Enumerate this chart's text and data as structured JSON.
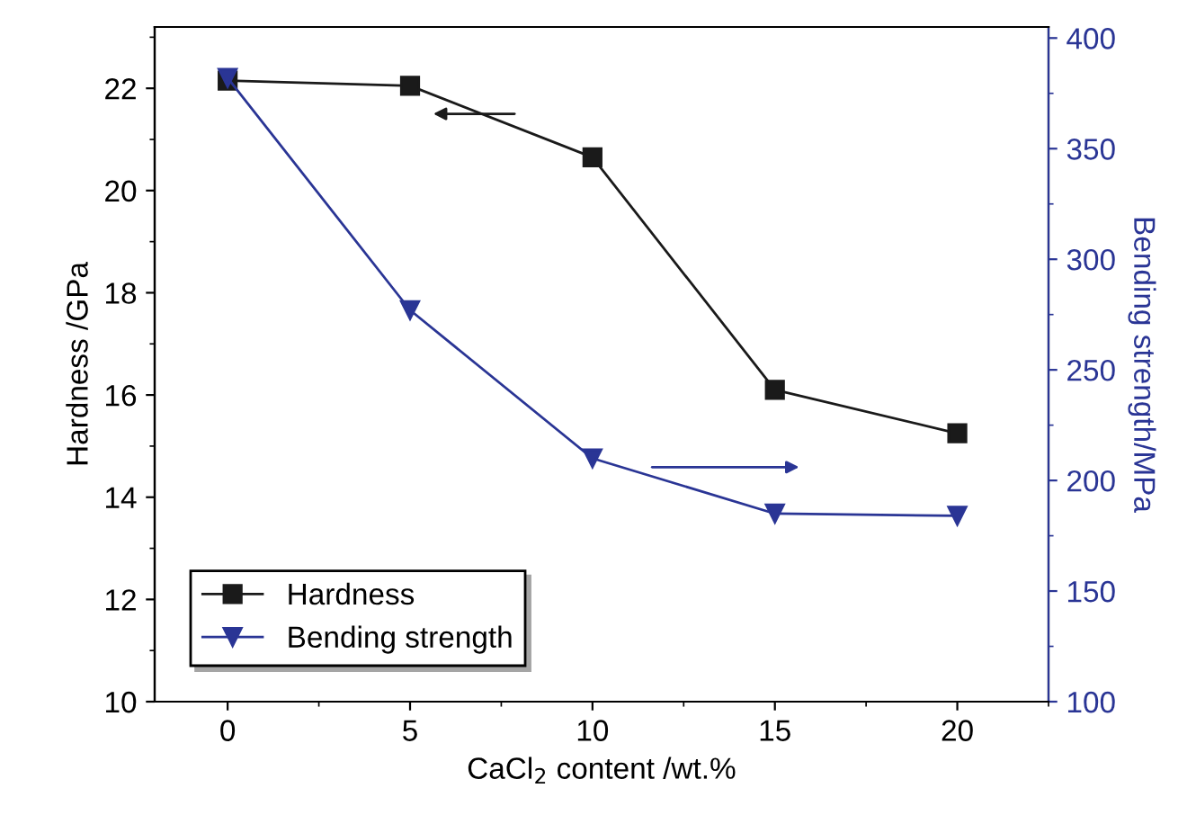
{
  "chart_data": {
    "type": "line",
    "xlabel": "CaCl$_{2}$ content /wt.%",
    "ylabel": "Hardness /GPa",
    "y2label": "Bending strength/MPa",
    "x": [
      0,
      5,
      10,
      15,
      20
    ],
    "series": [
      {
        "name": "Hardness",
        "color": "#1a1a1a",
        "values": [
          22.15,
          22.05,
          20.65,
          16.1,
          15.25
        ],
        "marker": "square"
      },
      {
        "name": "Bending strength",
        "color": "#2a3595",
        "values": [
          382,
          277,
          210,
          185,
          184
        ],
        "marker": "triangle",
        "axis": "y2"
      }
    ],
    "xlim": [
      -2,
      22.5
    ],
    "xticks": [
      0,
      5,
      10,
      15,
      20
    ],
    "ylim": [
      10,
      23.2
    ],
    "yticks": [
      10,
      12,
      14,
      16,
      18,
      20,
      22
    ],
    "y2lim": [
      100,
      405
    ],
    "y2ticks": [
      100,
      150,
      200,
      250,
      300,
      350,
      400
    ],
    "legend": "bottom left",
    "grid": false
  }
}
